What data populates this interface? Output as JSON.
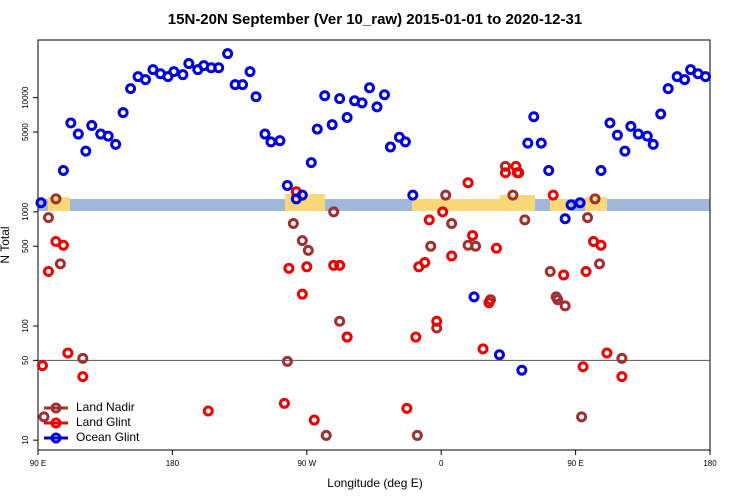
{
  "chart_data": {
    "type": "scatter",
    "title": "15N-20N September (Ver 10_raw)   2015-01-01 to 2020-12-31",
    "xlabel": "Longitude (deg E)",
    "ylabel": "N Total",
    "xlim": [
      -270,
      180
    ],
    "xticks": [
      {
        "value": -270,
        "label": "90 E"
      },
      {
        "value": -180,
        "label": "180"
      },
      {
        "value": -90,
        "label": "90 W"
      },
      0,
      {
        "value": 90,
        "label": "90 E"
      },
      180
    ],
    "ylim": [
      8.2,
      32000
    ],
    "yscale": "log",
    "yticks": [
      10,
      50,
      100,
      500,
      1000,
      5000,
      10000
    ],
    "hlines": [
      50
    ],
    "legend": "lower left",
    "series": [
      {
        "name": "Land Nadir",
        "color": "#a03030",
        "x": [
          -266,
          -263,
          -258,
          -255,
          -240,
          -103,
          -99,
          -93,
          -89,
          -77,
          -72,
          -68,
          -63,
          -16,
          -3,
          3,
          7,
          18,
          23,
          33,
          43,
          48,
          52,
          56,
          73,
          77,
          78,
          83,
          94,
          98,
          103,
          106,
          121,
          -7
        ],
        "values": [
          16,
          890,
          1300,
          350,
          52,
          49,
          790,
          560,
          460,
          11,
          1000,
          110,
          80,
          11,
          96,
          1400,
          790,
          510,
          500,
          170,
          2500,
          1400,
          2200,
          850,
          300,
          180,
          170,
          150,
          16,
          890,
          1300,
          350,
          52,
          500
        ]
      },
      {
        "name": "Land Glint",
        "color": "#ee0000",
        "x": [
          -267,
          -263,
          -258,
          -253,
          -250,
          -240,
          -156,
          -105,
          -102,
          -97,
          -93,
          -90,
          -85,
          -72,
          -68,
          -63,
          -23,
          -17,
          -15,
          -11,
          -8,
          -3,
          1,
          7,
          18,
          21,
          28,
          32,
          37,
          43,
          50,
          51,
          75,
          82,
          95,
          97,
          102,
          107,
          111,
          121
        ],
        "values": [
          45,
          300,
          550,
          510,
          58,
          36,
          18,
          21,
          320,
          1500,
          190,
          330,
          15,
          340,
          340,
          80,
          19,
          80,
          330,
          360,
          850,
          110,
          1000,
          410,
          1800,
          620,
          63,
          160,
          480,
          2200,
          2500,
          2200,
          1400,
          280,
          44,
          300,
          550,
          510,
          58,
          36
        ]
      },
      {
        "name": "Ocean Glint",
        "color": "#0000dd",
        "x": [
          -268,
          -253,
          -248,
          -243,
          -238,
          -234,
          -228,
          -223,
          -218,
          -213,
          -208,
          -203,
          -198,
          -193,
          -188,
          -183,
          -179,
          -173,
          -169,
          -163,
          -159,
          -154,
          -149,
          -143,
          -138,
          -133,
          -128,
          -124,
          -118,
          -114,
          -108,
          -103,
          -97,
          -93,
          -87,
          -83,
          -78,
          -73,
          -68,
          -63,
          -58,
          -53,
          -48,
          -43,
          -38,
          -34,
          -28,
          -24,
          -19,
          22,
          39,
          54,
          58,
          62,
          67,
          72,
          83,
          87,
          93,
          107,
          113,
          118,
          123,
          127,
          132,
          138,
          142,
          147,
          152,
          158,
          163,
          167,
          172,
          177
        ],
        "values": [
          1200,
          2300,
          6000,
          4800,
          3400,
          5700,
          4800,
          4600,
          3900,
          7400,
          12000,
          15300,
          14400,
          17600,
          16200,
          15300,
          16900,
          15900,
          19900,
          17600,
          19100,
          18300,
          18300,
          24300,
          13000,
          13000,
          16900,
          10200,
          4800,
          4100,
          4200,
          1700,
          1300,
          1400,
          2700,
          5300,
          10400,
          5800,
          9800,
          6700,
          9400,
          9000,
          12200,
          8300,
          10600,
          3700,
          4500,
          4100,
          1400,
          180,
          56,
          41,
          4000,
          6800,
          4000,
          2300,
          870,
          1150,
          1200,
          2300,
          6000,
          4700,
          3400,
          5600,
          4800,
          4600,
          3900,
          7200,
          12000,
          15300,
          14400,
          17600,
          16200,
          15300
        ]
      }
    ]
  }
}
